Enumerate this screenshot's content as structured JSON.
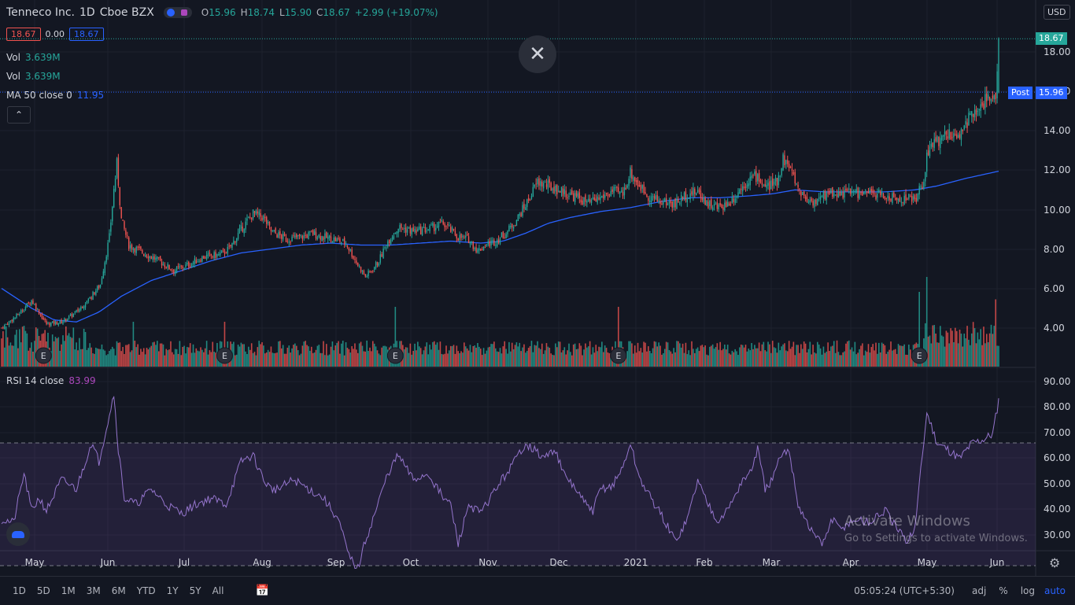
{
  "header": {
    "symbol": "Tenneco Inc.",
    "interval": "1D",
    "exchange": "Cboe BZX",
    "ohlc": {
      "o_label": "O",
      "o": "15.96",
      "h_label": "H",
      "h": "18.74",
      "l_label": "L",
      "l": "15.90",
      "c_label": "C",
      "c": "18.67",
      "change": "+2.99 (+19.07%)"
    },
    "bid": "18.67",
    "spread": "0.00",
    "ask": "18.67",
    "vol1_label": "Vol",
    "vol1": "3.639M",
    "vol2_label": "Vol",
    "vol2": "3.639M",
    "ma_label": "MA 50 close 0",
    "ma_value": "11.95",
    "currency": "USD"
  },
  "price_tags": {
    "last": "18.67",
    "post_label": "Post",
    "post": "15.96"
  },
  "rsi": {
    "label": "RSI 14 close",
    "value": "83.99",
    "upper": 70,
    "lower": 30
  },
  "colors": {
    "up": "#26a69a",
    "down": "#ef5350",
    "ma": "#2962ff",
    "rsi": "#9c27b0",
    "bg": "#131722"
  },
  "time_axis": [
    "May",
    "Jun",
    "Jul",
    "Aug",
    "Sep",
    "Oct",
    "Nov",
    "Dec",
    "2021",
    "Feb",
    "Mar",
    "Apr",
    "May",
    "Jun"
  ],
  "price_axis": [
    "18.00",
    "16.00",
    "14.00",
    "12.00",
    "10.00",
    "8.00",
    "6.00",
    "4.00"
  ],
  "rsi_axis": [
    "90.00",
    "80.00",
    "70.00",
    "60.00",
    "50.00",
    "40.00",
    "30.00"
  ],
  "earnings_marker": "E",
  "timeframes": [
    "1D",
    "5D",
    "1M",
    "3M",
    "6M",
    "YTD",
    "1Y",
    "5Y",
    "All"
  ],
  "bottom_right": {
    "clock": "05:05:24 (UTC+5:30)",
    "adj": "adj",
    "percent": "%",
    "log": "log",
    "auto": "auto"
  },
  "watermark": {
    "line1": "Activate Windows",
    "line2": "Go to Settings to activate Windows."
  },
  "chart_data": {
    "type": "candlestick",
    "x_range": [
      "2020-04-20",
      "2021-06-01"
    ],
    "ylim": [
      2.5,
      19.5
    ],
    "rsi_ylim": [
      25,
      93
    ],
    "close_anchors": [
      [
        0,
        4.0
      ],
      [
        10,
        4.6
      ],
      [
        20,
        5.4
      ],
      [
        30,
        4.2
      ],
      [
        40,
        4.3
      ],
      [
        50,
        4.8
      ],
      [
        60,
        5.6
      ],
      [
        66,
        6.2
      ],
      [
        72,
        8.6
      ],
      [
        75,
        11.0
      ],
      [
        77,
        12.3
      ],
      [
        80,
        9.5
      ],
      [
        85,
        8.2
      ],
      [
        95,
        7.8
      ],
      [
        105,
        7.4
      ],
      [
        115,
        6.9
      ],
      [
        125,
        7.2
      ],
      [
        135,
        7.6
      ],
      [
        145,
        7.7
      ],
      [
        152,
        8.0
      ],
      [
        160,
        9.0
      ],
      [
        168,
        9.8
      ],
      [
        175,
        9.6
      ],
      [
        180,
        8.9
      ],
      [
        190,
        8.5
      ],
      [
        200,
        8.6
      ],
      [
        208,
        8.8
      ],
      [
        215,
        8.6
      ],
      [
        222,
        8.5
      ],
      [
        230,
        8.3
      ],
      [
        238,
        7.2
      ],
      [
        243,
        6.6
      ],
      [
        247,
        6.9
      ],
      [
        252,
        7.4
      ],
      [
        258,
        8.4
      ],
      [
        265,
        9.1
      ],
      [
        275,
        8.9
      ],
      [
        285,
        9.0
      ],
      [
        295,
        9.3
      ],
      [
        305,
        8.6
      ],
      [
        312,
        8.5
      ],
      [
        318,
        7.9
      ],
      [
        323,
        8.2
      ],
      [
        330,
        8.4
      ],
      [
        338,
        8.9
      ],
      [
        345,
        9.6
      ],
      [
        352,
        10.5
      ],
      [
        358,
        11.4
      ],
      [
        365,
        11.2
      ],
      [
        375,
        10.9
      ],
      [
        385,
        10.6
      ],
      [
        392,
        10.3
      ],
      [
        400,
        10.6
      ],
      [
        408,
        10.9
      ],
      [
        415,
        10.8
      ],
      [
        420,
        11.9
      ],
      [
        425,
        11.3
      ],
      [
        432,
        10.7
      ],
      [
        440,
        10.4
      ],
      [
        450,
        10.3
      ],
      [
        458,
        10.8
      ],
      [
        465,
        10.9
      ],
      [
        472,
        10.3
      ],
      [
        478,
        10.1
      ],
      [
        485,
        10.3
      ],
      [
        490,
        10.7
      ],
      [
        495,
        11.2
      ],
      [
        500,
        11.6
      ],
      [
        505,
        11.7
      ],
      [
        510,
        11.1
      ],
      [
        518,
        11.4
      ],
      [
        522,
        12.6
      ],
      [
        526,
        12.2
      ],
      [
        532,
        11.1
      ],
      [
        538,
        10.5
      ],
      [
        545,
        10.4
      ],
      [
        552,
        10.9
      ],
      [
        560,
        10.8
      ],
      [
        568,
        10.9
      ],
      [
        575,
        10.8
      ],
      [
        583,
        10.8
      ],
      [
        590,
        10.7
      ],
      [
        598,
        10.5
      ],
      [
        605,
        10.6
      ],
      [
        610,
        10.5
      ],
      [
        615,
        11.2
      ],
      [
        620,
        13.5
      ],
      [
        626,
        13.4
      ],
      [
        632,
        13.9
      ],
      [
        638,
        13.6
      ],
      [
        643,
        14.2
      ],
      [
        648,
        14.9
      ],
      [
        654,
        15.3
      ],
      [
        660,
        15.8
      ],
      [
        664,
        15.96
      ],
      [
        666,
        18.67
      ]
    ],
    "ma50_anchors": [
      [
        0,
        6.0
      ],
      [
        20,
        5.0
      ],
      [
        35,
        4.4
      ],
      [
        50,
        4.3
      ],
      [
        65,
        4.8
      ],
      [
        80,
        5.6
      ],
      [
        100,
        6.4
      ],
      [
        120,
        6.9
      ],
      [
        140,
        7.4
      ],
      [
        160,
        7.8
      ],
      [
        180,
        8.0
      ],
      [
        200,
        8.2
      ],
      [
        220,
        8.3
      ],
      [
        240,
        8.2
      ],
      [
        260,
        8.2
      ],
      [
        280,
        8.3
      ],
      [
        300,
        8.4
      ],
      [
        320,
        8.3
      ],
      [
        335,
        8.4
      ],
      [
        350,
        8.8
      ],
      [
        365,
        9.3
      ],
      [
        380,
        9.6
      ],
      [
        400,
        9.9
      ],
      [
        420,
        10.1
      ],
      [
        440,
        10.4
      ],
      [
        460,
        10.6
      ],
      [
        480,
        10.6
      ],
      [
        500,
        10.7
      ],
      [
        515,
        10.8
      ],
      [
        530,
        11.0
      ],
      [
        550,
        10.9
      ],
      [
        570,
        10.9
      ],
      [
        590,
        10.9
      ],
      [
        610,
        11.0
      ],
      [
        625,
        11.2
      ],
      [
        645,
        11.6
      ],
      [
        660,
        11.85
      ],
      [
        666,
        11.95
      ]
    ],
    "rsi_anchors": [
      [
        0,
        45
      ],
      [
        8,
        44
      ],
      [
        15,
        60
      ],
      [
        20,
        48
      ],
      [
        25,
        52
      ],
      [
        30,
        48
      ],
      [
        40,
        58
      ],
      [
        50,
        55
      ],
      [
        60,
        70
      ],
      [
        65,
        64
      ],
      [
        70,
        75
      ],
      [
        75,
        86
      ],
      [
        78,
        68
      ],
      [
        82,
        52
      ],
      [
        90,
        50
      ],
      [
        100,
        55
      ],
      [
        110,
        50
      ],
      [
        120,
        47
      ],
      [
        130,
        50
      ],
      [
        140,
        52
      ],
      [
        150,
        50
      ],
      [
        160,
        64
      ],
      [
        168,
        66
      ],
      [
        175,
        58
      ],
      [
        180,
        55
      ],
      [
        185,
        55
      ],
      [
        195,
        58
      ],
      [
        205,
        55
      ],
      [
        215,
        52
      ],
      [
        225,
        45
      ],
      [
        232,
        33
      ],
      [
        238,
        29
      ],
      [
        243,
        38
      ],
      [
        250,
        48
      ],
      [
        258,
        60
      ],
      [
        265,
        66
      ],
      [
        275,
        58
      ],
      [
        285,
        60
      ],
      [
        295,
        52
      ],
      [
        300,
        50
      ],
      [
        305,
        37
      ],
      [
        312,
        50
      ],
      [
        320,
        47
      ],
      [
        330,
        55
      ],
      [
        340,
        62
      ],
      [
        350,
        70
      ],
      [
        355,
        68
      ],
      [
        362,
        65
      ],
      [
        370,
        68
      ],
      [
        375,
        60
      ],
      [
        382,
        56
      ],
      [
        390,
        50
      ],
      [
        395,
        48
      ],
      [
        400,
        55
      ],
      [
        408,
        56
      ],
      [
        415,
        62
      ],
      [
        420,
        70
      ],
      [
        425,
        60
      ],
      [
        430,
        55
      ],
      [
        440,
        47
      ],
      [
        450,
        38
      ],
      [
        458,
        45
      ],
      [
        465,
        58
      ],
      [
        470,
        52
      ],
      [
        478,
        45
      ],
      [
        485,
        48
      ],
      [
        495,
        58
      ],
      [
        500,
        60
      ],
      [
        505,
        68
      ],
      [
        510,
        55
      ],
      [
        515,
        58
      ],
      [
        520,
        65
      ],
      [
        526,
        68
      ],
      [
        532,
        50
      ],
      [
        540,
        42
      ],
      [
        548,
        37
      ],
      [
        555,
        45
      ],
      [
        560,
        42
      ],
      [
        570,
        45
      ],
      [
        580,
        44
      ],
      [
        590,
        48
      ],
      [
        598,
        42
      ],
      [
        604,
        38
      ],
      [
        610,
        42
      ],
      [
        618,
        80
      ],
      [
        625,
        70
      ],
      [
        632,
        68
      ],
      [
        640,
        65
      ],
      [
        648,
        70
      ],
      [
        655,
        71
      ],
      [
        662,
        73
      ],
      [
        666,
        84
      ]
    ],
    "earnings_bars": [
      28,
      149,
      263,
      412,
      613
    ],
    "big_volume_bars": [
      [
        88,
        0.6
      ],
      [
        149,
        0.6
      ],
      [
        263,
        0.8
      ],
      [
        412,
        0.8
      ],
      [
        613,
        1.0
      ],
      [
        618,
        1.2
      ],
      [
        664,
        0.9
      ]
    ]
  }
}
